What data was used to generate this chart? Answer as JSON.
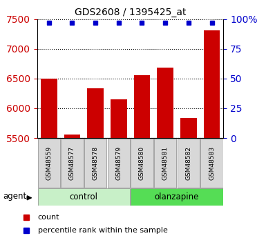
{
  "title": "GDS2608 / 1395425_at",
  "samples": [
    "GSM48559",
    "GSM48577",
    "GSM48578",
    "GSM48579",
    "GSM48580",
    "GSM48581",
    "GSM48582",
    "GSM48583"
  ],
  "counts": [
    6500,
    5560,
    6340,
    6150,
    6555,
    6680,
    5835,
    7310
  ],
  "percentile_ranks": [
    100,
    100,
    100,
    100,
    100,
    100,
    100,
    100
  ],
  "groups": [
    "control",
    "control",
    "control",
    "control",
    "olanzapine",
    "olanzapine",
    "olanzapine",
    "olanzapine"
  ],
  "group_colors": {
    "control": "#c8f0c8",
    "olanzapine": "#55dd55"
  },
  "bar_color": "#cc0000",
  "percentile_color": "#0000cc",
  "ylim_left": [
    5500,
    7500
  ],
  "ylim_right": [
    0,
    100
  ],
  "yticks_left": [
    5500,
    6000,
    6500,
    7000,
    7500
  ],
  "yticks_right": [
    0,
    25,
    50,
    75,
    100
  ],
  "ytick_labels_right": [
    "0",
    "25",
    "50",
    "75",
    "100%"
  ],
  "bar_width": 0.7,
  "agent_label": "agent",
  "legend_count_label": "count",
  "legend_percentile_label": "percentile rank within the sample"
}
